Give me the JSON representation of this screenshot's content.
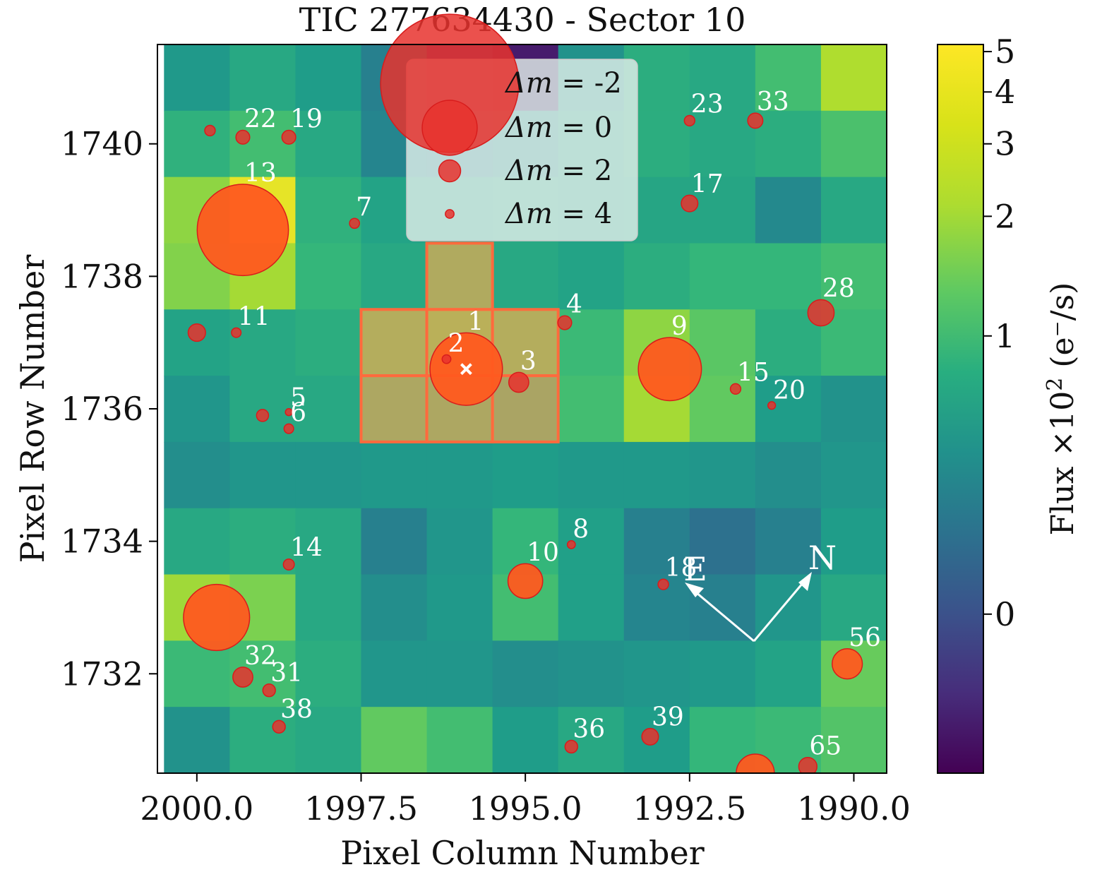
{
  "chart_data": {
    "type": "heatmap",
    "title": "TIC 277634430 - Sector 10",
    "xlabel": "Pixel Column Number",
    "ylabel": "Pixel Row Number",
    "x_axis_inverted": true,
    "xlim": [
      2000.6,
      1989.5
    ],
    "ylim": [
      1730.5,
      1741.5
    ],
    "xticks": [
      {
        "value": 2000.0,
        "label": "2000.0"
      },
      {
        "value": 1997.5,
        "label": "1997.5"
      },
      {
        "value": 1995.0,
        "label": "1995.0"
      },
      {
        "value": 1992.5,
        "label": "1992.5"
      },
      {
        "value": 1990.0,
        "label": "1990.0"
      }
    ],
    "yticks": [
      {
        "value": 1732,
        "label": "1732"
      },
      {
        "value": 1734,
        "label": "1734"
      },
      {
        "value": 1736,
        "label": "1736"
      },
      {
        "value": 1738,
        "label": "1738"
      },
      {
        "value": 1740,
        "label": "1740"
      }
    ],
    "columns": [
      2000,
      1999,
      1998,
      1997,
      1996,
      1995,
      1994,
      1993,
      1992,
      1991,
      1990
    ],
    "rows": [
      1741,
      1740,
      1739,
      1738,
      1737,
      1736,
      1735,
      1734,
      1733,
      1732,
      1731
    ],
    "flux_grid": [
      [
        0.75,
        1.0,
        0.8,
        0.45,
        -0.1,
        -0.28,
        0.65,
        1.1,
        1.0,
        1.5,
        3.2
      ],
      [
        1.2,
        1.5,
        1.0,
        0.5,
        0.45,
        0.55,
        0.9,
        1.1,
        1.0,
        1.1,
        1.6
      ],
      [
        2.6,
        4.5,
        1.2,
        0.9,
        0.85,
        1.0,
        0.9,
        0.95,
        0.95,
        0.55,
        1.0
      ],
      [
        2.4,
        3.0,
        1.3,
        1.0,
        1.2,
        1.0,
        0.9,
        1.1,
        1.3,
        1.3,
        1.5
      ],
      [
        0.9,
        1.0,
        1.1,
        1.4,
        1.6,
        1.4,
        1.4,
        2.6,
        1.8,
        1.1,
        1.4
      ],
      [
        0.7,
        1.0,
        1.0,
        1.0,
        1.0,
        0.85,
        1.5,
        3.0,
        1.9,
        0.8,
        0.65
      ],
      [
        0.6,
        0.7,
        0.7,
        0.75,
        0.75,
        0.8,
        0.75,
        0.75,
        0.7,
        0.6,
        0.7
      ],
      [
        1.0,
        1.1,
        1.0,
        0.45,
        0.7,
        1.3,
        0.85,
        0.45,
        0.3,
        0.45,
        0.8
      ],
      [
        2.9,
        2.3,
        1.0,
        0.6,
        0.75,
        1.5,
        0.85,
        0.5,
        0.45,
        0.7,
        1.0
      ],
      [
        1.4,
        1.5,
        1.1,
        0.7,
        0.7,
        0.6,
        0.65,
        0.7,
        0.75,
        0.9,
        2.0
      ],
      [
        0.65,
        1.1,
        1.0,
        1.9,
        1.5,
        0.8,
        1.0,
        0.8,
        1.3,
        1.4,
        1.7
      ]
    ],
    "colorbar": {
      "label": "Flux ×10² (e⁻/s)",
      "label_main": "Flux ×10",
      "label_exp": "2",
      "label_unit": " (e⁻/s)",
      "min": -0.45,
      "max": 5.2,
      "scale": "log-like",
      "ticks": [
        {
          "value": 0,
          "label": "0"
        },
        {
          "value": 1,
          "label": "1"
        },
        {
          "value": 2,
          "label": "2"
        },
        {
          "value": 3,
          "label": "3"
        },
        {
          "value": 4,
          "label": "4"
        },
        {
          "value": 5,
          "label": "5"
        }
      ]
    },
    "aperture_pixels": [
      [
        1996,
        1738
      ],
      [
        1997,
        1737
      ],
      [
        1996,
        1737
      ],
      [
        1995,
        1737
      ],
      [
        1997,
        1736
      ],
      [
        1996,
        1736
      ],
      [
        1995,
        1736
      ]
    ],
    "target": {
      "x": 1995.9,
      "y": 1736.6,
      "label": "1",
      "dm": -0.6
    },
    "stars": [
      {
        "x": 1995.9,
        "y": 1736.6,
        "label": "1",
        "dm": -0.6
      },
      {
        "x": 1996.2,
        "y": 1736.75,
        "label": "2",
        "dm": 4
      },
      {
        "x": 1995.1,
        "y": 1736.4,
        "label": "3",
        "dm": 2.2
      },
      {
        "x": 1994.4,
        "y": 1737.3,
        "label": "4",
        "dm": 3
      },
      {
        "x": 1998.6,
        "y": 1735.95,
        "label": "5",
        "dm": 4.5
      },
      {
        "x": 1998.6,
        "y": 1735.7,
        "label": "6",
        "dm": 3.8
      },
      {
        "x": 1997.6,
        "y": 1738.8,
        "label": "7",
        "dm": 3.7
      },
      {
        "x": 1994.3,
        "y": 1733.95,
        "label": "8",
        "dm": 4.2
      },
      {
        "x": 1992.8,
        "y": 1736.6,
        "label": "9",
        "dm": -0.3
      },
      {
        "x": 1995.0,
        "y": 1733.4,
        "label": "10",
        "dm": 1
      },
      {
        "x": 1999.4,
        "y": 1737.15,
        "label": "11",
        "dm": 3.8
      },
      {
        "x": 1999.3,
        "y": 1738.7,
        "label": "13",
        "dm": -1.1
      },
      {
        "x": 1998.6,
        "y": 1733.65,
        "label": "14",
        "dm": 3.5
      },
      {
        "x": 1991.8,
        "y": 1736.3,
        "label": "15",
        "dm": 3.6
      },
      {
        "x": 1992.5,
        "y": 1739.1,
        "label": "17",
        "dm": 2.6
      },
      {
        "x": 1992.9,
        "y": 1733.35,
        "label": "18",
        "dm": 3.6
      },
      {
        "x": 1998.6,
        "y": 1740.1,
        "label": "19",
        "dm": 3
      },
      {
        "x": 1991.25,
        "y": 1736.05,
        "label": "20",
        "dm": 4.3
      },
      {
        "x": 1999.3,
        "y": 1740.1,
        "label": "22",
        "dm": 3
      },
      {
        "x": 1992.5,
        "y": 1740.35,
        "label": "23",
        "dm": 3.6
      },
      {
        "x": 1990.5,
        "y": 1737.45,
        "label": "28",
        "dm": 1.6
      },
      {
        "x": 1998.9,
        "y": 1731.75,
        "label": "31",
        "dm": 3.2
      },
      {
        "x": 1999.3,
        "y": 1731.95,
        "label": "32",
        "dm": 2.2
      },
      {
        "x": 1991.5,
        "y": 1740.35,
        "label": "33",
        "dm": 2.8
      },
      {
        "x": 1994.3,
        "y": 1730.9,
        "label": "36",
        "dm": 3.2
      },
      {
        "x": 1998.75,
        "y": 1731.2,
        "label": "38",
        "dm": 3.2
      },
      {
        "x": 1993.1,
        "y": 1731.05,
        "label": "39",
        "dm": 2.6
      },
      {
        "x": 1990.1,
        "y": 1732.15,
        "label": "56",
        "dm": 1.3
      },
      {
        "x": 1990.7,
        "y": 1730.6,
        "label": "65",
        "dm": 2.4
      },
      {
        "x": 1999.8,
        "y": 1740.2,
        "label": "",
        "dm": 3.6
      },
      {
        "x": 2000.0,
        "y": 1737.15,
        "label": "",
        "dm": 2.5
      },
      {
        "x": 1999.0,
        "y": 1735.9,
        "label": "",
        "dm": 3.3
      },
      {
        "x": 1999.7,
        "y": 1732.85,
        "label": "",
        "dm": -0.4
      },
      {
        "x": 1991.5,
        "y": 1730.5,
        "label": "",
        "dm": 0.8
      }
    ],
    "legend": {
      "placement": "upper center",
      "entries": [
        {
          "dm": -2,
          "label": "Δm = -2",
          "sym": "Δm",
          "eq": "= -2"
        },
        {
          "dm": 0,
          "label": "Δm = 0",
          "sym": "Δm",
          "eq": "= 0"
        },
        {
          "dm": 2,
          "label": "Δm = 2",
          "sym": "Δm",
          "eq": "= 2"
        },
        {
          "dm": 4,
          "label": "Δm = 4",
          "sym": "Δm",
          "eq": "= 4"
        }
      ]
    },
    "compass": {
      "north": "N",
      "east": "E"
    }
  },
  "colors": {
    "aperture": "#ff6a3d",
    "aperture_fill": "#ffa64d",
    "star": "#e8322e",
    "star_edge": "#d81c1c",
    "star_fill_target": "#ff5a1f",
    "text_on_map": "#ffffff",
    "legend_bg": "#dfeee9"
  }
}
